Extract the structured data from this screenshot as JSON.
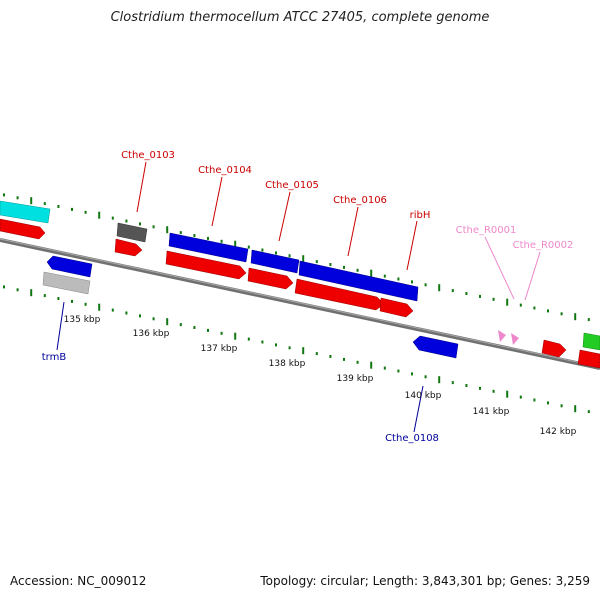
{
  "title": "Clostridium thermocellum ATCC 27405, complete genome",
  "accession": "Accession: NC_009012",
  "summary": "Topology: circular; Length: 3,843,301 bp; Genes: 3,259",
  "colors": {
    "backbone": "#808080",
    "tick": "#117711",
    "cds_forward": "#0000dd",
    "cds_reverse": "#ee0000",
    "cds_gray": "#555555",
    "cds_light": "#bbbbbb",
    "cds_cyan": "#00e0e0",
    "cds_green": "#22cc22",
    "ncrna": "#ee88cc",
    "label_red": "#cc0000",
    "label_blue": "#000099",
    "label_pink": "#ee88cc"
  },
  "ticks": [
    "135 kbp",
    "136 kbp",
    "137 kbp",
    "138 kbp",
    "139 kbp",
    "140 kbp",
    "141 kbp",
    "142 kbp"
  ],
  "labels": {
    "cthe_0103": "Cthe_0103",
    "cthe_0104": "Cthe_0104",
    "cthe_0105": "Cthe_0105",
    "cthe_0106": "Cthe_0106",
    "ribh": "ribH",
    "cthe_r0001": "Cthe_R0001",
    "cthe_r0002": "Cthe_R0002",
    "trmb": "trmB",
    "cthe_0108": "Cthe_0108"
  }
}
